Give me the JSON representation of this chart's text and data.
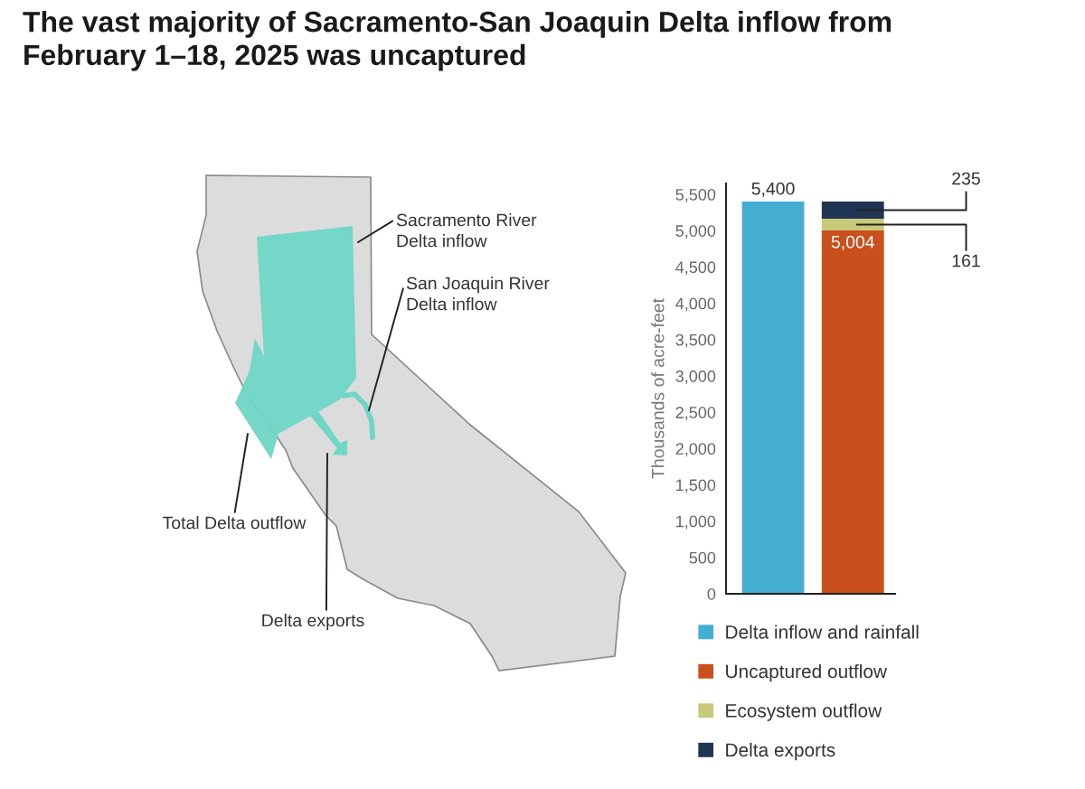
{
  "chart_data": {
    "type": "bar",
    "stacked": true,
    "title": "The vast majority of Sacramento-San Joaquin Delta inflow from\nFebruary 1–18, 2025 was uncaptured",
    "ylabel": "Thousands of acre-feet",
    "categories": [
      null,
      null
    ],
    "series": [
      {
        "name": "Delta inflow and rainfall",
        "color": "#45aed2",
        "values": [
          5400,
          null
        ],
        "value_labels": [
          "5,400",
          null
        ]
      },
      {
        "name": "Uncaptured outflow",
        "color": "#c94f1c",
        "values": [
          null,
          5004
        ],
        "value_labels": [
          null,
          "5,004"
        ]
      },
      {
        "name": "Ecosystem outflow",
        "color": "#c9c97a",
        "values": [
          null,
          161
        ],
        "value_labels": [
          null,
          "161"
        ]
      },
      {
        "name": "Delta exports",
        "color": "#1f3553",
        "values": [
          null,
          235
        ],
        "value_labels": [
          null,
          "235"
        ]
      }
    ],
    "ylim": [
      0,
      5650
    ],
    "yticks": [
      0,
      500,
      {
        "value": 1000,
        "label": "1,000"
      },
      {
        "value": 1500,
        "label": "1,500"
      },
      {
        "value": 2000,
        "label": "2,000"
      },
      {
        "value": 2500,
        "label": "2,500"
      },
      {
        "value": 3000,
        "label": "3,000"
      },
      {
        "value": 3500,
        "label": "3,500"
      },
      {
        "value": 4000,
        "label": "4,000"
      },
      {
        "value": 4500,
        "label": "4,500"
      },
      {
        "value": 5000,
        "label": "5,000"
      },
      {
        "value": 5500,
        "label": "5,500"
      }
    ],
    "tick_labels": "y",
    "legend": "bottom",
    "annotations": [
      "Sacramento River\nDelta inflow",
      "San Joaquin River\nDelta inflow",
      "Total Delta outflow",
      "Delta exports"
    ]
  }
}
